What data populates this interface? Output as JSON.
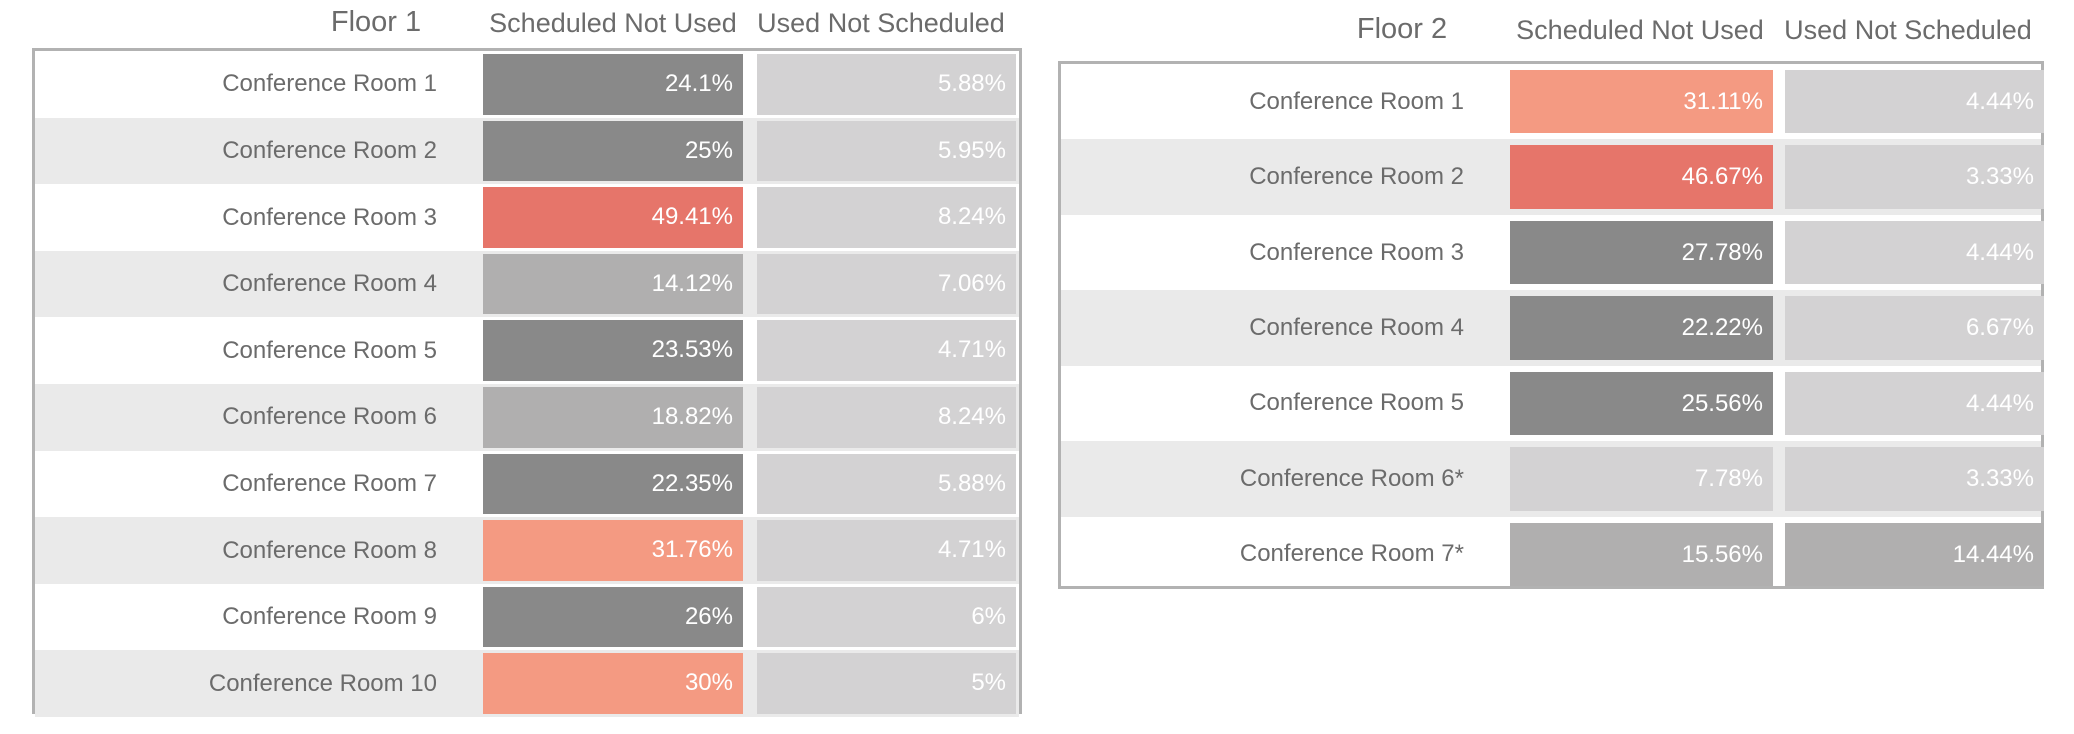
{
  "colors": {
    "high": "#e6756a",
    "elevated": "#f49a82",
    "medium": "#898989",
    "low": "#b0afaf",
    "minimal": "#d3d2d3",
    "row_alt_bg": "#eaeaea",
    "frame": "#b2b2b2"
  },
  "chart_data": [
    {
      "type": "table",
      "title": "Floor 1",
      "columns": [
        "Scheduled Not Used",
        "Used Not Scheduled"
      ],
      "rows": [
        {
          "label": "Conference Room 1",
          "scheduled_not_used": "24.1%",
          "used_not_scheduled": "5.88%",
          "snu_level": "medium",
          "uns_level": "minimal"
        },
        {
          "label": "Conference Room 2",
          "scheduled_not_used": "25%",
          "used_not_scheduled": "5.95%",
          "snu_level": "medium",
          "uns_level": "minimal"
        },
        {
          "label": "Conference Room 3",
          "scheduled_not_used": "49.41%",
          "used_not_scheduled": "8.24%",
          "snu_level": "high",
          "uns_level": "minimal"
        },
        {
          "label": "Conference Room 4",
          "scheduled_not_used": "14.12%",
          "used_not_scheduled": "7.06%",
          "snu_level": "low",
          "uns_level": "minimal"
        },
        {
          "label": "Conference Room 5",
          "scheduled_not_used": "23.53%",
          "used_not_scheduled": "4.71%",
          "snu_level": "medium",
          "uns_level": "minimal"
        },
        {
          "label": "Conference Room 6",
          "scheduled_not_used": "18.82%",
          "used_not_scheduled": "8.24%",
          "snu_level": "low",
          "uns_level": "minimal"
        },
        {
          "label": "Conference Room 7",
          "scheduled_not_used": "22.35%",
          "used_not_scheduled": "5.88%",
          "snu_level": "medium",
          "uns_level": "minimal"
        },
        {
          "label": "Conference Room 8",
          "scheduled_not_used": "31.76%",
          "used_not_scheduled": "4.71%",
          "snu_level": "elevated",
          "uns_level": "minimal"
        },
        {
          "label": "Conference Room 9",
          "scheduled_not_used": "26%",
          "used_not_scheduled": "6%",
          "snu_level": "medium",
          "uns_level": "minimal"
        },
        {
          "label": "Conference Room 10",
          "scheduled_not_used": "30%",
          "used_not_scheduled": "5%",
          "snu_level": "elevated",
          "uns_level": "minimal"
        }
      ]
    },
    {
      "type": "table",
      "title": "Floor 2",
      "columns": [
        "Scheduled Not Used",
        "Used Not Scheduled"
      ],
      "rows": [
        {
          "label": "Conference Room 1",
          "scheduled_not_used": "31.11%",
          "used_not_scheduled": "4.44%",
          "snu_level": "elevated",
          "uns_level": "minimal"
        },
        {
          "label": "Conference Room 2",
          "scheduled_not_used": "46.67%",
          "used_not_scheduled": "3.33%",
          "snu_level": "high",
          "uns_level": "minimal"
        },
        {
          "label": "Conference Room 3",
          "scheduled_not_used": "27.78%",
          "used_not_scheduled": "4.44%",
          "snu_level": "medium",
          "uns_level": "minimal"
        },
        {
          "label": "Conference Room 4",
          "scheduled_not_used": "22.22%",
          "used_not_scheduled": "6.67%",
          "snu_level": "medium",
          "uns_level": "minimal"
        },
        {
          "label": "Conference Room 5",
          "scheduled_not_used": "25.56%",
          "used_not_scheduled": "4.44%",
          "snu_level": "medium",
          "uns_level": "minimal"
        },
        {
          "label": "Conference Room 6*",
          "scheduled_not_used": "7.78%",
          "used_not_scheduled": "3.33%",
          "snu_level": "minimal",
          "uns_level": "minimal"
        },
        {
          "label": "Conference Room 7*",
          "scheduled_not_used": "15.56%",
          "used_not_scheduled": "14.44%",
          "snu_level": "low",
          "uns_level": "low"
        }
      ]
    }
  ]
}
